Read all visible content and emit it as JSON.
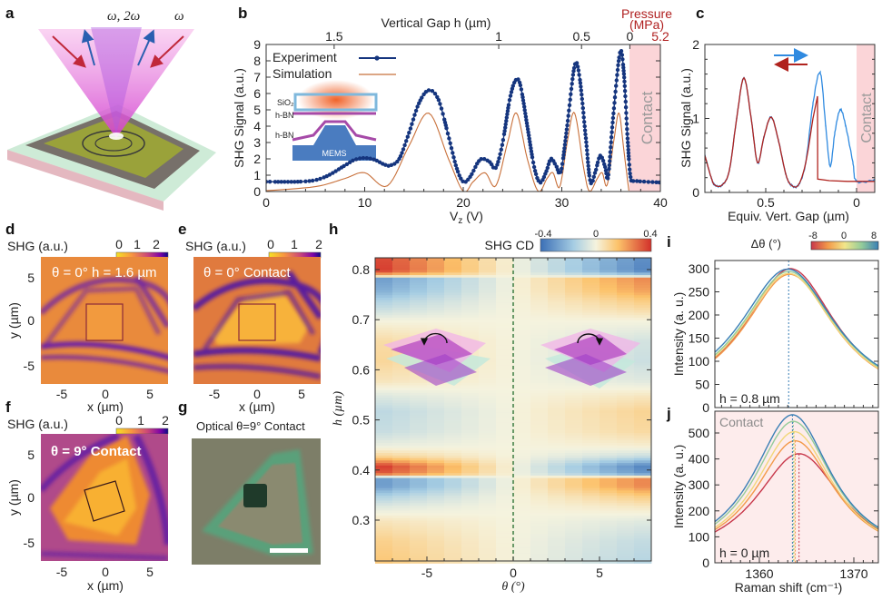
{
  "panel_labels": [
    "a",
    "b",
    "c",
    "d",
    "e",
    "f",
    "g",
    "h",
    "i",
    "j"
  ],
  "panel_a": {
    "beam_label_1": "ω, 2ω",
    "beam_label_2": "ω",
    "colors": {
      "cone": "#e070d8",
      "red_arrow": "#c0283a",
      "blue_arrow": "#2a5fb0"
    }
  },
  "images": {
    "d": {
      "colorbar_label": "SHG (a.u.)",
      "colorbar_ticks": [
        "0",
        "1",
        "2"
      ],
      "overlay": "θ = 0°  h = 1.6 µm",
      "xlabel": "x (µm)",
      "ylabel": "y (µm)",
      "xticks": [
        "-5",
        "0",
        "5"
      ],
      "yticks": [
        "5",
        "0",
        "-5"
      ]
    },
    "e": {
      "colorbar_label": "SHG (a.u.)",
      "colorbar_ticks": [
        "0",
        "1",
        "2"
      ],
      "overlay": "θ = 0° Contact",
      "xlabel": "x (µm)",
      "xticks": [
        "-5",
        "0",
        "5"
      ]
    },
    "f": {
      "colorbar_label": "SHG (a.u.)",
      "colorbar_ticks": [
        "0",
        "1",
        "2"
      ],
      "overlay": "θ = 9° Contact",
      "xlabel": "x (µm)",
      "ylabel": "y (µm)",
      "xticks": [
        "-5",
        "0",
        "5"
      ],
      "yticks": [
        "5",
        "0",
        "-5"
      ]
    },
    "g": {
      "title": "Optical  θ=9° Contact"
    }
  },
  "chart_data": [
    {
      "panel": "b",
      "type": "line",
      "xlabel_main": "V",
      "xlabel_sub": "z",
      "xlabel_unit": " (V)",
      "ylabel": "SHG Signal (a.u.)",
      "top_axis_label": "Vertical Gap h (µm)",
      "top_ticks": [
        "1.5",
        "1",
        "0.5",
        "0"
      ],
      "top_tick_V": [
        6.9,
        23.6,
        32.0,
        36.9
      ],
      "pressure_label_1": "Pressure",
      "pressure_label_2": "(MPa)",
      "pressure_tick": "5.2",
      "xlim": [
        0,
        40
      ],
      "ylim": [
        0,
        9
      ],
      "xticks": [
        "0",
        "10",
        "20",
        "30",
        "40"
      ],
      "yticks": [
        "0",
        "1",
        "2",
        "3",
        "4",
        "5",
        "6",
        "7",
        "8",
        "9"
      ],
      "contact_region_V": [
        36.9,
        40
      ],
      "contact_label": "Contact",
      "inset_labels": [
        "SiO₂",
        "h-BN",
        "h-BN",
        "MEMS"
      ],
      "legend": [
        "Experiment",
        "Simulation"
      ],
      "series": [
        {
          "name": "Experiment",
          "color": "#15357e",
          "points": [
            [
              0,
              0.6
            ],
            [
              4,
              0.62
            ],
            [
              6,
              0.9
            ],
            [
              8,
              1.6
            ],
            [
              9,
              1.95
            ],
            [
              10,
              2.05
            ],
            [
              11,
              1.95
            ],
            [
              12,
              1.65
            ],
            [
              12.6,
              1.6
            ],
            [
              13.5,
              2.0
            ],
            [
              14.5,
              3.6
            ],
            [
              15.5,
              5.4
            ],
            [
              16.5,
              6.2
            ],
            [
              17.5,
              5.6
            ],
            [
              18.5,
              3.4
            ],
            [
              19.3,
              1.5
            ],
            [
              20,
              0.6
            ],
            [
              20.7,
              0.9
            ],
            [
              21.5,
              1.8
            ],
            [
              22,
              2.0
            ],
            [
              22.7,
              1.8
            ],
            [
              23.3,
              1.45
            ],
            [
              24,
              3.0
            ],
            [
              24.7,
              5.6
            ],
            [
              25.3,
              6.8
            ],
            [
              25.8,
              6.5
            ],
            [
              26.5,
              4.0
            ],
            [
              27.2,
              1.5
            ],
            [
              27.8,
              0.55
            ],
            [
              28.4,
              1.2
            ],
            [
              28.9,
              2.0
            ],
            [
              29.4,
              1.6
            ],
            [
              29.9,
              1.2
            ],
            [
              30.5,
              3.8
            ],
            [
              31.3,
              7.7
            ],
            [
              31.8,
              7.0
            ],
            [
              32.4,
              3.5
            ],
            [
              32.9,
              0.6
            ],
            [
              33.4,
              1.2
            ],
            [
              33.9,
              2.2
            ],
            [
              34.4,
              1.5
            ],
            [
              34.7,
              0.9
            ],
            [
              35.2,
              4.5
            ],
            [
              35.9,
              8.5
            ],
            [
              36.3,
              7.2
            ],
            [
              36.7,
              3.0
            ],
            [
              37.0,
              0.8
            ],
            [
              37.5,
              0.65
            ],
            [
              40,
              0.55
            ]
          ]
        },
        {
          "name": "Simulation",
          "color": "#c8703a",
          "points": [
            [
              0,
              0.05
            ],
            [
              5,
              0.3
            ],
            [
              8,
              0.8
            ],
            [
              10,
              1.15
            ],
            [
              12.3,
              0.35
            ],
            [
              14.5,
              2.8
            ],
            [
              16.5,
              4.8
            ],
            [
              18.5,
              2.0
            ],
            [
              20,
              0.02
            ],
            [
              21,
              0.6
            ],
            [
              22.2,
              1.15
            ],
            [
              23.3,
              0.35
            ],
            [
              24.5,
              3.0
            ],
            [
              25.4,
              4.8
            ],
            [
              26.5,
              2.0
            ],
            [
              27.6,
              0.02
            ],
            [
              28.5,
              0.8
            ],
            [
              29.1,
              1.15
            ],
            [
              29.8,
              0.3
            ],
            [
              30.6,
              3.2
            ],
            [
              31.3,
              4.8
            ],
            [
              32.2,
              1.5
            ],
            [
              32.8,
              0.02
            ],
            [
              33.6,
              0.8
            ],
            [
              34.1,
              1.15
            ],
            [
              34.6,
              0.4
            ],
            [
              35.3,
              3.2
            ],
            [
              35.8,
              4.8
            ],
            [
              36.3,
              2.5
            ],
            [
              36.8,
              0.05
            ]
          ]
        }
      ]
    },
    {
      "panel": "c",
      "type": "line",
      "xlabel": "Equiv. Vert. Gap (µm)",
      "ylabel": "SHG Signal (a.u.)",
      "xlim": [
        0.835,
        -0.1
      ],
      "ylim": [
        0,
        2
      ],
      "xticks": [
        "0.5",
        "0"
      ],
      "xtick_values": [
        0.5,
        0
      ],
      "yticks": [
        "0",
        "1",
        "2"
      ],
      "contact_region": [
        0,
        -0.1
      ],
      "contact_label": "Contact",
      "series": [
        {
          "name": "forward",
          "color": "#2f8ae0",
          "points": [
            [
              0.835,
              0.5
            ],
            [
              0.8,
              0.2
            ],
            [
              0.78,
              0.1
            ],
            [
              0.74,
              0.1
            ],
            [
              0.7,
              0.3
            ],
            [
              0.66,
              1.0
            ],
            [
              0.62,
              1.55
            ],
            [
              0.58,
              1.0
            ],
            [
              0.545,
              0.4
            ],
            [
              0.51,
              0.75
            ],
            [
              0.47,
              1.02
            ],
            [
              0.43,
              0.7
            ],
            [
              0.39,
              0.25
            ],
            [
              0.36,
              0.1
            ],
            [
              0.32,
              0.1
            ],
            [
              0.28,
              0.4
            ],
            [
              0.24,
              1.2
            ],
            [
              0.2,
              1.62
            ],
            [
              0.17,
              0.9
            ],
            [
              0.145,
              0.35
            ],
            [
              0.12,
              0.8
            ],
            [
              0.09,
              1.12
            ],
            [
              0.06,
              0.9
            ],
            [
              0.02,
              0.4
            ],
            [
              0,
              0.15
            ],
            [
              -0.1,
              0.17
            ]
          ]
        },
        {
          "name": "backward",
          "color": "#b0231e",
          "points": [
            [
              0.835,
              0.5
            ],
            [
              0.8,
              0.2
            ],
            [
              0.78,
              0.1
            ],
            [
              0.74,
              0.1
            ],
            [
              0.7,
              0.3
            ],
            [
              0.66,
              1.0
            ],
            [
              0.62,
              1.55
            ],
            [
              0.58,
              1.0
            ],
            [
              0.545,
              0.4
            ],
            [
              0.51,
              0.75
            ],
            [
              0.47,
              1.02
            ],
            [
              0.43,
              0.7
            ],
            [
              0.39,
              0.25
            ],
            [
              0.36,
              0.1
            ],
            [
              0.32,
              0.1
            ],
            [
              0.28,
              0.4
            ],
            [
              0.24,
              1.0
            ],
            [
              0.215,
              1.3
            ],
            [
              0.214,
              0.18
            ],
            [
              0.15,
              0.16
            ],
            [
              0.05,
              0.15
            ],
            [
              -0.1,
              0.15
            ]
          ]
        }
      ]
    },
    {
      "panel": "h",
      "type": "heatmap",
      "xlabel": "θ (°)",
      "ylabel": "h (µm)",
      "xlim": [
        -8,
        8
      ],
      "ylim": [
        0.218,
        0.824
      ],
      "xticks": [
        "-5",
        "0",
        "5"
      ],
      "xtick_values": [
        -5,
        0,
        5
      ],
      "yticks": [
        "0.8",
        "0.7",
        "0.6",
        "0.5",
        "0.4",
        "0.3"
      ],
      "ytick_values": [
        0.8,
        0.7,
        0.6,
        0.5,
        0.4,
        0.3
      ],
      "colorbar_label": "SHG CD",
      "colorbar_ticks": [
        "-0.4",
        "0",
        "0.4"
      ],
      "colorbar_range": [
        -0.4,
        0.4
      ],
      "theta_columns": [
        -7.5,
        -6.5,
        -5.5,
        -4.5,
        -3.5,
        -2.5,
        -1.5,
        -0.5,
        0.5,
        1.5,
        2.5,
        3.5,
        4.5,
        5.5,
        6.5,
        7.5
      ],
      "cd_at_minus8_by_h": [
        [
          0.824,
          0.38
        ],
        [
          0.8,
          0.4
        ],
        [
          0.79,
          0.15
        ],
        [
          0.785,
          -0.3
        ],
        [
          0.76,
          -0.25
        ],
        [
          0.74,
          -0.15
        ],
        [
          0.72,
          -0.08
        ],
        [
          0.7,
          0.0
        ],
        [
          0.66,
          0.08
        ],
        [
          0.62,
          0.1
        ],
        [
          0.58,
          0.05
        ],
        [
          0.55,
          -0.05
        ],
        [
          0.52,
          -0.12
        ],
        [
          0.48,
          -0.1
        ],
        [
          0.45,
          -0.02
        ],
        [
          0.43,
          0.1
        ],
        [
          0.41,
          0.4
        ],
        [
          0.395,
          0.35
        ],
        [
          0.385,
          -0.3
        ],
        [
          0.37,
          -0.3
        ],
        [
          0.35,
          -0.15
        ],
        [
          0.33,
          -0.05
        ],
        [
          0.3,
          0.05
        ],
        [
          0.26,
          0.12
        ],
        [
          0.218,
          0.15
        ]
      ]
    },
    {
      "panel": "i",
      "type": "line",
      "colorbar_label": "Δθ (°)",
      "colorbar_ticks": [
        "-8",
        "0",
        "8"
      ],
      "ylabel": "Intensity (a. u.)",
      "annotation": "h = 0.8 µm",
      "xlim": [
        1355.3,
        1372.6
      ],
      "ylim": [
        0,
        318
      ],
      "yticks": [
        "0",
        "50",
        "100",
        "150",
        "200",
        "250",
        "300"
      ],
      "series": [
        {
          "delta_theta": -8,
          "color": "#c8384b",
          "peak_position": 1363.3,
          "peak_intensity": 300,
          "width": 6.0
        },
        {
          "delta_theta": -4,
          "color": "#f39a4a",
          "peak_position": 1363.2,
          "peak_intensity": 288,
          "width": 6.0
        },
        {
          "delta_theta": 0,
          "color": "#f2d77a",
          "peak_position": 1363.1,
          "peak_intensity": 290,
          "width": 6.1
        },
        {
          "delta_theta": 4,
          "color": "#94cc9a",
          "peak_position": 1363.1,
          "peak_intensity": 294,
          "width": 6.2
        },
        {
          "delta_theta": 8,
          "color": "#3a7fb5",
          "peak_position": 1363.0,
          "peak_intensity": 299,
          "width": 6.3
        }
      ]
    },
    {
      "panel": "j",
      "type": "line",
      "xlabel": "Raman shift  (cm⁻¹)",
      "ylabel": "Intensity (a. u.)",
      "annotation": "h = 0 µm",
      "region_label": "Contact",
      "xlim": [
        1355.3,
        1372.6
      ],
      "ylim": [
        0,
        583
      ],
      "xticks": [
        "1360",
        "1370"
      ],
      "xtick_values": [
        1360,
        1370
      ],
      "yticks": [
        "0",
        "100",
        "200",
        "300",
        "400",
        "500"
      ],
      "series": [
        {
          "delta_theta": -8,
          "color": "#c8384b",
          "peak_position": 1364.2,
          "peak_intensity": 420,
          "width": 5.6
        },
        {
          "delta_theta": -4,
          "color": "#f39a4a",
          "peak_position": 1363.8,
          "peak_intensity": 470,
          "width": 5.2
        },
        {
          "delta_theta": 0,
          "color": "#f2d77a",
          "peak_position": 1363.7,
          "peak_intensity": 505,
          "width": 5.1
        },
        {
          "delta_theta": 4,
          "color": "#94cc9a",
          "peak_position": 1363.6,
          "peak_intensity": 545,
          "width": 5.1
        },
        {
          "delta_theta": 8,
          "color": "#3a7fb5",
          "peak_position": 1363.5,
          "peak_intensity": 570,
          "width": 5.1
        }
      ]
    }
  ]
}
